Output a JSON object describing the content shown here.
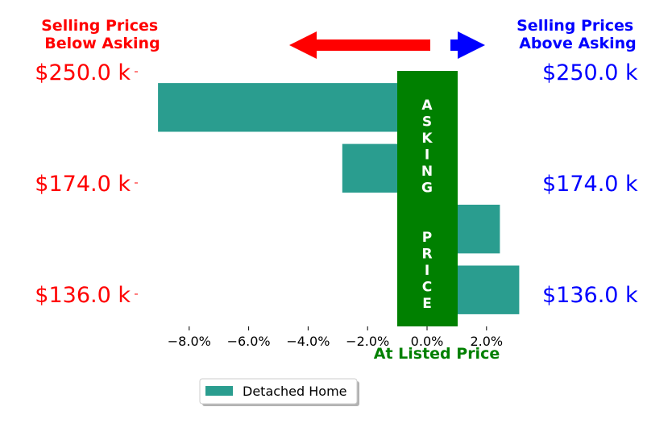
{
  "chart_data": {
    "type": "bar",
    "orientation": "horizontal",
    "title_left": [
      "Selling Prices",
      "Below Asking"
    ],
    "title_right": [
      "Selling Prices",
      "Above Asking"
    ],
    "xlabel": "At Listed Price",
    "center_band_label": "ASKING  PRICE",
    "price_labels": [
      "$250.0 k",
      "$174.0 k",
      "$136.0 k"
    ],
    "x_ticks": [
      -8,
      -6,
      -4,
      -2,
      0,
      2
    ],
    "x_tick_labels": [
      "−8.0%",
      "−6.0%",
      "−4.0%",
      "−2.0%",
      "0.0%",
      "2.0%"
    ],
    "xlim": [
      -9.75,
      3.25
    ],
    "ylim": [
      -0.6,
      3.6
    ],
    "series": [
      {
        "name": "Detached Home",
        "color": "#2a9d8f",
        "values": [
          3.1,
          2.45,
          -2.85,
          -9.05
        ]
      }
    ],
    "legend": {
      "position": "bottom-center",
      "labels": [
        "Detached Home"
      ]
    },
    "colors": {
      "left_text": "#ff0000",
      "right_text": "#0000ff",
      "center_band": "#008000",
      "arrow_left": "#ff0000",
      "arrow_right": "#0000ff",
      "xlabel": "#008000"
    }
  }
}
